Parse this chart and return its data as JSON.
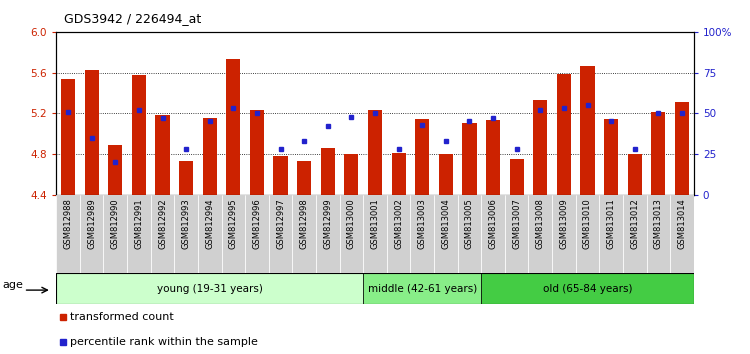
{
  "title": "GDS3942 / 226494_at",
  "samples": [
    "GSM812988",
    "GSM812989",
    "GSM812990",
    "GSM812991",
    "GSM812992",
    "GSM812993",
    "GSM812994",
    "GSM812995",
    "GSM812996",
    "GSM812997",
    "GSM812998",
    "GSM812999",
    "GSM813000",
    "GSM813001",
    "GSM813002",
    "GSM813003",
    "GSM813004",
    "GSM813005",
    "GSM813006",
    "GSM813007",
    "GSM813008",
    "GSM813009",
    "GSM813010",
    "GSM813011",
    "GSM813012",
    "GSM813013",
    "GSM813014"
  ],
  "bar_values": [
    5.54,
    5.63,
    4.89,
    5.58,
    5.18,
    4.73,
    5.15,
    5.73,
    5.23,
    4.78,
    4.73,
    4.86,
    4.8,
    5.23,
    4.81,
    5.14,
    4.8,
    5.1,
    5.13,
    4.75,
    5.33,
    5.59,
    5.66,
    5.14,
    4.8,
    5.21,
    5.31
  ],
  "percentile_values": [
    51,
    35,
    20,
    52,
    47,
    28,
    45,
    53,
    50,
    28,
    33,
    42,
    48,
    50,
    28,
    43,
    33,
    45,
    47,
    28,
    52,
    53,
    55,
    45,
    28,
    50,
    50
  ],
  "ylim_left": [
    4.4,
    6.0
  ],
  "ylim_right": [
    0,
    100
  ],
  "yticks_left": [
    4.4,
    4.8,
    5.2,
    5.6,
    6.0
  ],
  "yticks_right": [
    0,
    25,
    50,
    75,
    100
  ],
  "ytick_labels_right": [
    "0",
    "25",
    "50",
    "75",
    "100%"
  ],
  "bar_color": "#cc2200",
  "marker_color": "#2222cc",
  "groups": [
    {
      "label": "young (19-31 years)",
      "start": 0,
      "end": 13,
      "color": "#ccffcc"
    },
    {
      "label": "middle (42-61 years)",
      "start": 13,
      "end": 18,
      "color": "#88ee88"
    },
    {
      "label": "old (65-84 years)",
      "start": 18,
      "end": 27,
      "color": "#44cc44"
    }
  ],
  "legend_items": [
    {
      "label": "transformed count",
      "color": "#cc2200"
    },
    {
      "label": "percentile rank within the sample",
      "color": "#2222cc"
    }
  ],
  "age_label": "age"
}
